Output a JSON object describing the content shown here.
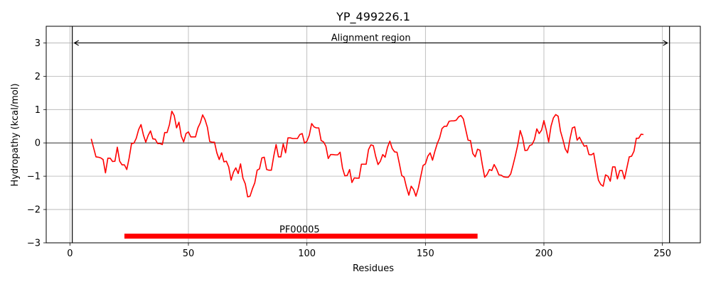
{
  "chart_data": {
    "type": "line",
    "title": "YP_499226.1",
    "xlabel": "Residues",
    "ylabel": "Hydropathy (kcal/mol)",
    "xlim": [
      -10,
      266
    ],
    "ylim": [
      -3,
      3.5
    ],
    "xticks": [
      0,
      50,
      100,
      150,
      200,
      250
    ],
    "yticks": [
      -3,
      -2,
      -1,
      0,
      1,
      2,
      3
    ],
    "grid": true,
    "series": [
      {
        "color": "#ff0000",
        "x": [
          9,
          10,
          11,
          12,
          13,
          14,
          15,
          16,
          17,
          18,
          19,
          20,
          21,
          22,
          23,
          24,
          25,
          26,
          27,
          28,
          29,
          30,
          31,
          32,
          33,
          34,
          35,
          36,
          37,
          38,
          39,
          40,
          41,
          42,
          43,
          44,
          45,
          46,
          47,
          48,
          49,
          50,
          51,
          52,
          53,
          54,
          55,
          56,
          57,
          58,
          59,
          60,
          61,
          62,
          63,
          64,
          65,
          66,
          67,
          68,
          69,
          70,
          71,
          72,
          73,
          74,
          75,
          76,
          77,
          78,
          79,
          80,
          81,
          82,
          83,
          84,
          85,
          86,
          87,
          88,
          89,
          90,
          91,
          92,
          93,
          94,
          95,
          96,
          97,
          98,
          99,
          100,
          101,
          102,
          103,
          104,
          105,
          106,
          107,
          108,
          109,
          110,
          111,
          112,
          113,
          114,
          115,
          116,
          117,
          118,
          119,
          120,
          121,
          122,
          123,
          124,
          125,
          126,
          127,
          128,
          129,
          130,
          131,
          132,
          133,
          134,
          135,
          136,
          137,
          138,
          139,
          140,
          141,
          142,
          143,
          144,
          145,
          146,
          147,
          148,
          149,
          150,
          151,
          152,
          153,
          154,
          155,
          156,
          157,
          158,
          159,
          160,
          161,
          162,
          163,
          164,
          165,
          166,
          167,
          168,
          169,
          170,
          171,
          172,
          173,
          174,
          175,
          176,
          177,
          178,
          179,
          180,
          181,
          182,
          183,
          184,
          185,
          186,
          187,
          188,
          189,
          190,
          191,
          192,
          193,
          194,
          195,
          196,
          197,
          198,
          199,
          200,
          201,
          202,
          203,
          204,
          205,
          206,
          207,
          208,
          209,
          210,
          211,
          212,
          213,
          214,
          215,
          216,
          217,
          218,
          219,
          220,
          221,
          222,
          223,
          224,
          225,
          226,
          227,
          228,
          229,
          230,
          231,
          232,
          233,
          234,
          235,
          236,
          237,
          238,
          239,
          240,
          241,
          242
        ],
        "y": [
          0.12,
          -0.15,
          -0.42,
          -0.43,
          -0.45,
          -0.5,
          -0.9,
          -0.46,
          -0.46,
          -0.56,
          -0.55,
          -0.13,
          -0.55,
          -0.66,
          -0.66,
          -0.8,
          -0.45,
          -0.02,
          -0.01,
          0.14,
          0.4,
          0.55,
          0.24,
          0.02,
          0.22,
          0.36,
          0.12,
          0.11,
          -0.02,
          -0.02,
          -0.05,
          0.31,
          0.31,
          0.55,
          0.95,
          0.82,
          0.45,
          0.62,
          0.2,
          0.03,
          0.28,
          0.33,
          0.18,
          0.18,
          0.18,
          0.45,
          0.6,
          0.84,
          0.7,
          0.47,
          0.04,
          0.02,
          0.02,
          -0.3,
          -0.5,
          -0.3,
          -0.57,
          -0.55,
          -0.72,
          -1.12,
          -0.88,
          -0.75,
          -0.92,
          -0.63,
          -1.06,
          -1.23,
          -1.62,
          -1.6,
          -1.38,
          -1.2,
          -0.82,
          -0.78,
          -0.45,
          -0.43,
          -0.8,
          -0.82,
          -0.82,
          -0.4,
          -0.05,
          -0.42,
          -0.42,
          -0.03,
          -0.3,
          0.15,
          0.15,
          0.13,
          0.13,
          0.13,
          0.25,
          0.28,
          -0.01,
          0.05,
          0.23,
          0.58,
          0.48,
          0.45,
          0.45,
          0.07,
          0.03,
          -0.1,
          -0.47,
          -0.35,
          -0.35,
          -0.36,
          -0.36,
          -0.28,
          -0.75,
          -0.99,
          -0.98,
          -0.8,
          -1.19,
          -1.05,
          -1.06,
          -1.06,
          -0.64,
          -0.64,
          -0.64,
          -0.2,
          -0.06,
          -0.08,
          -0.4,
          -0.65,
          -0.55,
          -0.35,
          -0.43,
          -0.13,
          0.05,
          -0.17,
          -0.27,
          -0.28,
          -0.62,
          -0.98,
          -1.03,
          -1.33,
          -1.57,
          -1.3,
          -1.4,
          -1.6,
          -1.36,
          -1.02,
          -0.68,
          -0.63,
          -0.4,
          -0.3,
          -0.52,
          -0.25,
          -0.02,
          0.15,
          0.43,
          0.5,
          0.5,
          0.65,
          0.66,
          0.66,
          0.68,
          0.78,
          0.82,
          0.72,
          0.4,
          0.08,
          0.07,
          -0.32,
          -0.42,
          -0.19,
          -0.22,
          -0.65,
          -1.03,
          -0.95,
          -0.8,
          -0.83,
          -0.65,
          -0.78,
          -0.96,
          -0.97,
          -1.02,
          -1.03,
          -1.03,
          -0.93,
          -0.66,
          -0.37,
          -0.05,
          0.37,
          0.15,
          -0.23,
          -0.22,
          -0.08,
          -0.05,
          0.1,
          0.42,
          0.28,
          0.38,
          0.67,
          0.38,
          0.03,
          0.5,
          0.75,
          0.85,
          0.8,
          0.35,
          0.1,
          -0.18,
          -0.3,
          0.12,
          0.45,
          0.48,
          0.08,
          0.17,
          0.03,
          -0.1,
          -0.08,
          -0.35,
          -0.36,
          -0.31,
          -0.73,
          -1.12,
          -1.25,
          -1.3,
          -0.96,
          -1.0,
          -1.15,
          -0.72,
          -0.72,
          -1.08,
          -0.83,
          -0.83,
          -1.08,
          -0.75,
          -0.42,
          -0.4,
          -0.25,
          0.14,
          0.14,
          0.26,
          0.25
        ]
      }
    ],
    "vlines": [
      1,
      253
    ],
    "alignment": {
      "label": "Alignment region",
      "x_start": 1,
      "x_end": 253,
      "y": 3.0
    },
    "domain": {
      "label": "PF00005",
      "x_start": 23,
      "x_end": 172,
      "y": -2.8,
      "color": "#ff0000"
    }
  }
}
